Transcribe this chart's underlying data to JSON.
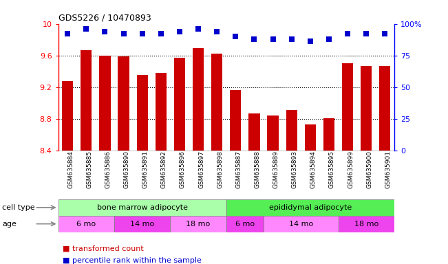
{
  "title": "GDS5226 / 10470893",
  "samples": [
    "GSM635884",
    "GSM635885",
    "GSM635886",
    "GSM635890",
    "GSM635891",
    "GSM635892",
    "GSM635896",
    "GSM635897",
    "GSM635898",
    "GSM635887",
    "GSM635888",
    "GSM635889",
    "GSM635893",
    "GSM635894",
    "GSM635895",
    "GSM635899",
    "GSM635900",
    "GSM635901"
  ],
  "bar_values": [
    9.28,
    9.67,
    9.6,
    9.59,
    9.35,
    9.38,
    9.57,
    9.69,
    9.62,
    9.16,
    8.87,
    8.84,
    8.91,
    8.73,
    8.81,
    9.5,
    9.47,
    9.47
  ],
  "percentile_values": [
    92,
    96,
    94,
    92,
    92,
    92,
    94,
    96,
    94,
    90,
    88,
    88,
    88,
    86,
    88,
    92,
    92,
    92
  ],
  "ylim": [
    8.4,
    10.0
  ],
  "yticks": [
    8.4,
    8.8,
    9.2,
    9.6,
    10.0
  ],
  "ytick_labels": [
    "8.4",
    "8.8",
    "9.2",
    "9.6",
    "10"
  ],
  "right_yticks": [
    0,
    25,
    50,
    75,
    100
  ],
  "right_ytick_labels": [
    "0",
    "25",
    "50",
    "75",
    "100%"
  ],
  "bar_color": "#cc0000",
  "dot_color": "#0000cc",
  "background_color": "#ffffff",
  "cell_type_groups": [
    {
      "label": "bone marrow adipocyte",
      "start": 0,
      "end": 9,
      "color": "#aaffaa"
    },
    {
      "label": "epididymal adipocyte",
      "start": 9,
      "end": 18,
      "color": "#55ee55"
    }
  ],
  "age_groups": [
    {
      "label": "6 mo",
      "start": 0,
      "end": 3,
      "color": "#ff88ff"
    },
    {
      "label": "14 mo",
      "start": 3,
      "end": 6,
      "color": "#ee44ee"
    },
    {
      "label": "18 mo",
      "start": 6,
      "end": 9,
      "color": "#ff88ff"
    },
    {
      "label": "6 mo",
      "start": 9,
      "end": 11,
      "color": "#ee44ee"
    },
    {
      "label": "14 mo",
      "start": 11,
      "end": 15,
      "color": "#ff88ff"
    },
    {
      "label": "18 mo",
      "start": 15,
      "end": 18,
      "color": "#ee44ee"
    }
  ],
  "cell_type_label": "cell type",
  "age_label": "age",
  "legend_bar_label": "transformed count",
  "legend_dot_label": "percentile rank within the sample"
}
